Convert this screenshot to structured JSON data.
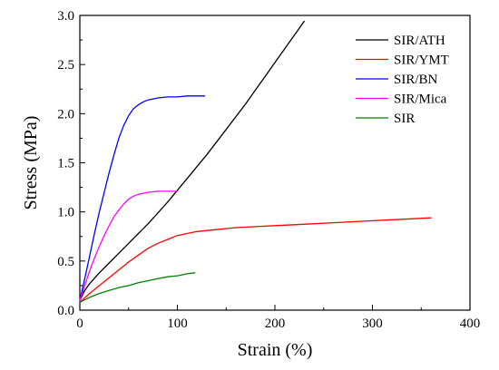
{
  "chart_data": {
    "type": "line",
    "xlabel": "Strain (%)",
    "ylabel": "Stress (MPa)",
    "xlim": [
      0,
      400
    ],
    "ylim": [
      0,
      3.0
    ],
    "x_ticks": [
      0,
      100,
      200,
      300,
      400
    ],
    "y_ticks": [
      0.0,
      0.5,
      1.0,
      1.5,
      2.0,
      2.5,
      3.0
    ],
    "x_tick_labels": [
      "0",
      "100",
      "200",
      "300",
      "400"
    ],
    "y_tick_labels": [
      "0.0",
      "0.5",
      "1.0",
      "1.5",
      "2.0",
      "2.5",
      "3.0"
    ],
    "grid": false,
    "legend_position": "top-right",
    "series": [
      {
        "name": "SIR/ATH",
        "color": "#000000",
        "x": [
          0,
          5,
          10,
          20,
          30,
          40,
          50,
          60,
          70,
          80,
          90,
          100,
          110,
          120,
          130,
          140,
          150,
          160,
          170,
          180,
          190,
          200,
          210,
          220,
          230
        ],
        "y": [
          0.1,
          0.2,
          0.27,
          0.38,
          0.48,
          0.58,
          0.68,
          0.78,
          0.88,
          0.99,
          1.1,
          1.22,
          1.34,
          1.46,
          1.58,
          1.71,
          1.84,
          1.97,
          2.1,
          2.24,
          2.38,
          2.52,
          2.66,
          2.8,
          2.94
        ]
      },
      {
        "name": "SIR/YMT",
        "color": "#ff0000",
        "x": [
          0,
          10,
          20,
          30,
          40,
          50,
          60,
          70,
          80,
          90,
          100,
          110,
          120,
          140,
          160,
          180,
          200,
          220,
          240,
          260,
          280,
          300,
          320,
          340,
          360
        ],
        "y": [
          0.08,
          0.17,
          0.25,
          0.33,
          0.41,
          0.49,
          0.56,
          0.63,
          0.68,
          0.72,
          0.76,
          0.78,
          0.8,
          0.82,
          0.84,
          0.85,
          0.86,
          0.87,
          0.88,
          0.89,
          0.9,
          0.91,
          0.92,
          0.93,
          0.94
        ]
      },
      {
        "name": "SIR/BN",
        "color": "#0000ff",
        "x": [
          0,
          5,
          10,
          15,
          20,
          25,
          30,
          35,
          40,
          45,
          50,
          55,
          60,
          65,
          70,
          80,
          90,
          100,
          110,
          120,
          128
        ],
        "y": [
          0.1,
          0.32,
          0.55,
          0.78,
          1.0,
          1.2,
          1.4,
          1.58,
          1.75,
          1.88,
          1.98,
          2.05,
          2.09,
          2.12,
          2.14,
          2.16,
          2.17,
          2.17,
          2.18,
          2.18,
          2.18
        ]
      },
      {
        "name": "SIR/Mica",
        "color": "#ff00ff",
        "x": [
          0,
          5,
          10,
          15,
          20,
          25,
          30,
          35,
          40,
          45,
          50,
          55,
          60,
          70,
          80,
          90,
          100
        ],
        "y": [
          0.1,
          0.25,
          0.4,
          0.53,
          0.65,
          0.76,
          0.86,
          0.95,
          1.02,
          1.08,
          1.13,
          1.16,
          1.18,
          1.2,
          1.21,
          1.21,
          1.21
        ]
      },
      {
        "name": "SIR",
        "color": "#008000",
        "x": [
          0,
          10,
          20,
          30,
          40,
          50,
          60,
          70,
          80,
          90,
          100,
          110,
          118
        ],
        "y": [
          0.08,
          0.13,
          0.17,
          0.2,
          0.23,
          0.25,
          0.28,
          0.3,
          0.32,
          0.34,
          0.35,
          0.37,
          0.38
        ]
      }
    ]
  }
}
